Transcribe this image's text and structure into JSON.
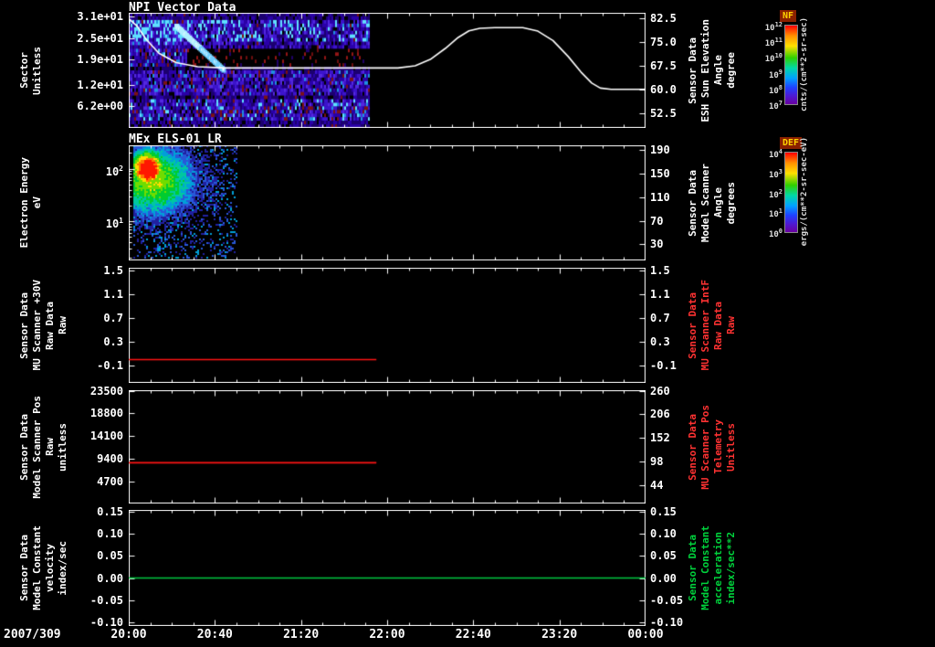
{
  "x_axis": {
    "date_label": "2007/309",
    "tick_labels": [
      "20:00",
      "20:40",
      "21:20",
      "22:00",
      "22:40",
      "23:20",
      "00:00"
    ],
    "tick_minutes": [
      0,
      40,
      80,
      120,
      160,
      200,
      240
    ]
  },
  "colorbars": [
    {
      "title": "NF",
      "tick_labels": [
        "10^12",
        "10^11",
        "10^10",
        "10^9",
        "10^8",
        "10^7"
      ],
      "units": "cnts/(cm**2-sr-sec)",
      "title_color": "#ffd200",
      "title_bg": "#8a2000"
    },
    {
      "title": "DEF",
      "tick_labels": [
        "10^4",
        "10^3",
        "10^2",
        "10^1",
        "10^0"
      ],
      "units": "ergs/(cm**2-sr-sec-eV)",
      "title_color": "#ffd200",
      "title_bg": "#8a2000"
    }
  ],
  "panels": [
    {
      "title": "NPI Vector Data",
      "left_label_lines": [
        "Sector",
        "Unitless"
      ],
      "left_label_color": "#ffffff",
      "left_tick_labels": [
        "3.1e+01",
        "2.5e+01",
        "1.9e+01",
        "1.2e+01",
        "6.2e+00"
      ],
      "right_tick_labels": [
        "82.5",
        "75.0",
        "67.5",
        "60.0",
        "52.5"
      ],
      "right_label_lines": [
        "Sensor Data",
        "ESH Sun Elevation",
        "Angle",
        "degree"
      ],
      "right_label_color": "#ffffff"
    },
    {
      "title": "MEx ELS-01 LR",
      "left_label_lines": [
        "Electron Energy",
        "eV"
      ],
      "left_label_color": "#ffffff",
      "left_tick_labels": [
        "10^2",
        "10^1"
      ],
      "right_tick_labels": [
        "190",
        "150",
        "110",
        "70",
        "30"
      ],
      "right_label_lines": [
        "Sensor Data",
        "Model Scanner",
        "Angle",
        "degrees"
      ],
      "right_label_color": "#ffffff"
    },
    {
      "title": "",
      "left_label_lines": [
        "Sensor Data",
        "MU Scanner +30V",
        "Raw Data",
        "Raw"
      ],
      "left_label_color": "#ffffff",
      "left_tick_labels": [
        "1.5",
        "1.1",
        "0.7",
        "0.3",
        "-0.1"
      ],
      "right_tick_labels": [
        "1.5",
        "1.1",
        "0.7",
        "0.3",
        "-0.1"
      ],
      "right_label_lines": [
        "Sensor Data",
        "MU Scanner IntF",
        "Raw Data",
        "Raw"
      ],
      "right_label_color": "#ff3232"
    },
    {
      "title": "",
      "left_label_lines": [
        "Sensor Data",
        "Model Scanner Pos",
        "Raw",
        "unitless"
      ],
      "left_label_color": "#ffffff",
      "left_tick_labels": [
        "23500",
        "18800",
        "14100",
        "9400",
        "4700"
      ],
      "right_tick_labels": [
        "260",
        "206",
        "152",
        "98",
        "44"
      ],
      "right_label_lines": [
        "Sensor Data",
        "MU Scanner Pos",
        "Telemetry",
        "Unitless"
      ],
      "right_label_color": "#ff3232"
    },
    {
      "title": "",
      "left_label_lines": [
        "Sensor Data",
        "Model Constant",
        "velocity",
        "index/sec"
      ],
      "left_label_color": "#ffffff",
      "left_tick_labels": [
        "0.15",
        "0.10",
        "0.05",
        "0.00",
        "-0.05",
        "-0.10"
      ],
      "right_tick_labels": [
        "0.15",
        "0.10",
        "0.05",
        "0.00",
        "-0.05",
        "-0.10"
      ],
      "right_label_lines": [
        "Sensor Data",
        "Model Constant",
        "acceleration",
        "index/sec**2"
      ],
      "right_label_color": "#00d23c"
    }
  ],
  "chart_data": [
    {
      "type": "heatmap",
      "title": "NPI Vector Data",
      "x_units": "time hh:mm on day 2007/309",
      "x_minutes_from_2000": [
        0,
        112
      ],
      "ylabel": "Sector (Unitless)",
      "y_ticks": [
        31,
        25,
        19,
        12,
        6.2
      ],
      "y_range": [
        0,
        32
      ],
      "z_label": "NF",
      "z_units": "cnts/(cm**2-sr-sec)",
      "z_scale_ticks": [
        "10^12",
        "10^11",
        "10^10",
        "10^9",
        "10^8",
        "10^7"
      ],
      "content_note": "Blue/violet counts across all 32 sectors from 20:00 to ~21:52; bright cyan diagonal streak ~20:10-20:20 in upper sectors; dark band with sparse dark-red speckles across mid sectors after ~20:25; black (no data) after 21:52",
      "overlay_line": {
        "name": "Sensor Data ESH Sun Elevation Angle",
        "units": "degree",
        "color": "#ffffff",
        "yaxis": "right",
        "y_ticks": [
          82.5,
          75.0,
          67.5,
          60.0,
          52.5
        ],
        "x_minutes": [
          0,
          4,
          8,
          14,
          22,
          32,
          45,
          125,
          133,
          140,
          147,
          153,
          158,
          163,
          170,
          183,
          190,
          197,
          204,
          210,
          215,
          219,
          224,
          240
        ],
        "y_degrees": [
          82.5,
          80,
          76,
          71.5,
          68.5,
          67.2,
          66.8,
          66.8,
          67.5,
          69.5,
          73,
          76.5,
          78.6,
          79.4,
          79.6,
          79.6,
          78.5,
          75.5,
          70.5,
          65.5,
          62,
          60.4,
          60,
          60
        ]
      }
    },
    {
      "type": "heatmap",
      "title": "MEx ELS-01 LR",
      "x_minutes_from_2000": [
        2,
        50
      ],
      "ylabel": "Electron Energy (eV)",
      "y_scale": "log",
      "y_ticks": [
        100,
        10
      ],
      "y_range": [
        1.8,
        280
      ],
      "z_label": "DEF",
      "z_units": "ergs/(cm**2-sr-sec-eV)",
      "z_scale_ticks": [
        "10^4",
        "10^3",
        "10^2",
        "10^1",
        "10^0"
      ],
      "content_note": "Intense red/yellow electron flux near 60-150 eV from ~20:05-20:15 surrounded by green, decaying to cyan/blue speckles until ~20:50; black (no data) elsewhere"
    },
    {
      "type": "line",
      "ylabel": "Sensor Data MU Scanner +30V Raw Data Raw",
      "ylim": [
        -0.1,
        1.5
      ],
      "y_ticks": [
        1.5,
        1.1,
        0.7,
        0.3,
        -0.1
      ],
      "series": [
        {
          "name": "Sensor Data MU Scanner IntF Raw Data Raw",
          "color": "#ff1414",
          "x_minutes": [
            0,
            115
          ],
          "values": [
            0.0,
            0.0
          ]
        }
      ]
    },
    {
      "type": "line",
      "ylabel": "Sensor Data Model Scanner Pos Raw unitless",
      "ylim": [
        0,
        23500
      ],
      "y_ticks": [
        23500,
        18800,
        14100,
        9400,
        4700
      ],
      "right_y_ticks": [
        260,
        206,
        152,
        98,
        44
      ],
      "series": [
        {
          "name": "Sensor Data MU Scanner Pos Telemetry Unitless",
          "color": "#ff1414",
          "x_minutes": [
            0,
            115
          ],
          "values": [
            8650,
            8650
          ]
        }
      ]
    },
    {
      "type": "line",
      "ylabel": "Sensor Data Model Constant velocity index/sec",
      "ylim": [
        -0.1,
        0.15
      ],
      "y_ticks": [
        0.15,
        0.1,
        0.05,
        0.0,
        -0.05,
        -0.1
      ],
      "series": [
        {
          "name": "Sensor Data Model Constant acceleration index/sec**2",
          "color": "#00c840",
          "x_minutes": [
            0,
            240
          ],
          "values": [
            0.0,
            0.0
          ]
        }
      ]
    }
  ]
}
